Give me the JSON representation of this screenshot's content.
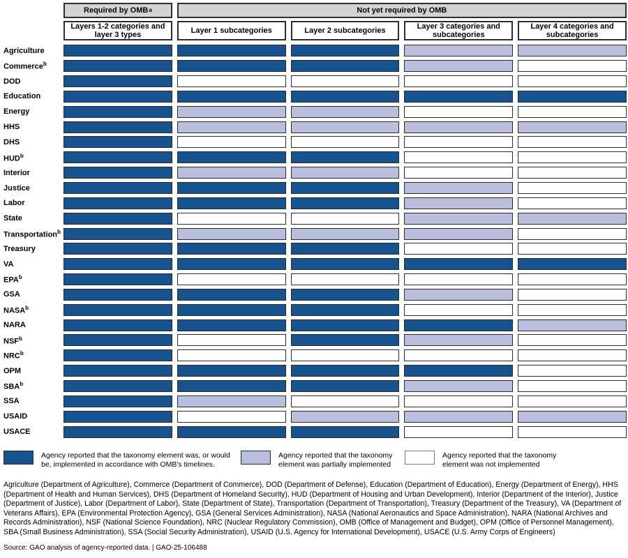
{
  "colors": {
    "implemented": "#16538F",
    "partial": "#B9BEDD",
    "not_implemented": "#FFFFFF",
    "header_fill": "#D3D3D3"
  },
  "header": {
    "required_label": "Required by OMB",
    "required_sup": "a",
    "not_required_label": "Not yet required by OMB"
  },
  "chart_data": {
    "type": "heatmap",
    "title": "",
    "column_groups": [
      {
        "label": "Required by OMB",
        "sup": "a",
        "span": 1
      },
      {
        "label": "Not yet required by OMB",
        "sup": "",
        "span": 4
      }
    ],
    "columns": [
      "Layers 1-2 categories and layer 3 types",
      "Layer 1 subcategories",
      "Layer 2 subcategories",
      "Layer 3 categories and subcategories",
      "Layer 4 categories and subcategories"
    ],
    "status_values": [
      "implemented",
      "partial",
      "not_implemented"
    ],
    "rows": [
      {
        "agency": "Agriculture",
        "sup": "",
        "values": [
          "implemented",
          "implemented",
          "implemented",
          "partial",
          "partial"
        ]
      },
      {
        "agency": "Commerce",
        "sup": "b",
        "values": [
          "implemented",
          "implemented",
          "implemented",
          "partial",
          "not_implemented"
        ]
      },
      {
        "agency": "DOD",
        "sup": "",
        "values": [
          "implemented",
          "not_implemented",
          "not_implemented",
          "not_implemented",
          "not_implemented"
        ]
      },
      {
        "agency": "Education",
        "sup": "",
        "values": [
          "implemented",
          "implemented",
          "implemented",
          "implemented",
          "implemented"
        ]
      },
      {
        "agency": "Energy",
        "sup": "",
        "values": [
          "implemented",
          "partial",
          "partial",
          "not_implemented",
          "not_implemented"
        ]
      },
      {
        "agency": "HHS",
        "sup": "",
        "values": [
          "implemented",
          "partial",
          "partial",
          "partial",
          "partial"
        ]
      },
      {
        "agency": "DHS",
        "sup": "",
        "values": [
          "implemented",
          "not_implemented",
          "not_implemented",
          "not_implemented",
          "not_implemented"
        ]
      },
      {
        "agency": "HUD",
        "sup": "b",
        "values": [
          "implemented",
          "implemented",
          "implemented",
          "not_implemented",
          "not_implemented"
        ]
      },
      {
        "agency": "Interior",
        "sup": "",
        "values": [
          "implemented",
          "partial",
          "partial",
          "not_implemented",
          "not_implemented"
        ]
      },
      {
        "agency": "Justice",
        "sup": "",
        "values": [
          "implemented",
          "implemented",
          "implemented",
          "partial",
          "not_implemented"
        ]
      },
      {
        "agency": "Labor",
        "sup": "",
        "values": [
          "implemented",
          "implemented",
          "implemented",
          "partial",
          "not_implemented"
        ]
      },
      {
        "agency": "State",
        "sup": "",
        "values": [
          "implemented",
          "not_implemented",
          "not_implemented",
          "partial",
          "partial"
        ]
      },
      {
        "agency": "Transportation",
        "sup": "b",
        "values": [
          "implemented",
          "partial",
          "partial",
          "partial",
          "not_implemented"
        ]
      },
      {
        "agency": "Treasury",
        "sup": "",
        "values": [
          "implemented",
          "implemented",
          "implemented",
          "not_implemented",
          "not_implemented"
        ]
      },
      {
        "agency": "VA",
        "sup": "",
        "values": [
          "implemented",
          "implemented",
          "implemented",
          "implemented",
          "implemented"
        ]
      },
      {
        "agency": "EPA",
        "sup": "b",
        "values": [
          "implemented",
          "not_implemented",
          "not_implemented",
          "not_implemented",
          "not_implemented"
        ]
      },
      {
        "agency": "GSA",
        "sup": "",
        "values": [
          "implemented",
          "implemented",
          "implemented",
          "partial",
          "not_implemented"
        ]
      },
      {
        "agency": "NASA",
        "sup": "b",
        "values": [
          "implemented",
          "implemented",
          "implemented",
          "not_implemented",
          "not_implemented"
        ]
      },
      {
        "agency": "NARA",
        "sup": "",
        "values": [
          "implemented",
          "implemented",
          "implemented",
          "implemented",
          "partial"
        ]
      },
      {
        "agency": "NSF",
        "sup": "b",
        "values": [
          "implemented",
          "not_implemented",
          "implemented",
          "partial",
          "not_implemented"
        ]
      },
      {
        "agency": "NRC",
        "sup": "b",
        "values": [
          "implemented",
          "not_implemented",
          "not_implemented",
          "not_implemented",
          "not_implemented"
        ]
      },
      {
        "agency": "OPM",
        "sup": "",
        "values": [
          "implemented",
          "implemented",
          "implemented",
          "implemented",
          "not_implemented"
        ]
      },
      {
        "agency": "SBA",
        "sup": "b",
        "values": [
          "implemented",
          "implemented",
          "implemented",
          "partial",
          "not_implemented"
        ]
      },
      {
        "agency": "SSA",
        "sup": "",
        "values": [
          "implemented",
          "partial",
          "not_implemented",
          "not_implemented",
          "not_implemented"
        ]
      },
      {
        "agency": "USAID",
        "sup": "",
        "values": [
          "implemented",
          "not_implemented",
          "partial",
          "partial",
          "partial"
        ]
      },
      {
        "agency": "USACE",
        "sup": "",
        "values": [
          "implemented",
          "implemented",
          "implemented",
          "not_implemented",
          "not_implemented"
        ]
      }
    ]
  },
  "legend": [
    {
      "key": "implemented",
      "text": "Agency reported that the taxonomy element was, or would be, implemented in accordance with OMB's timelines."
    },
    {
      "key": "partial",
      "text": "Agency reported that the taxonomy element was partially implemented"
    },
    {
      "key": "not_implemented",
      "text": "Agency reported that the taxonomy element was not implemented"
    }
  ],
  "footnote": "Agriculture (Department of Agriculture), Commerce (Department of Commerce), DOD (Department of Defense), Education (Department of Education), Energy (Department of Energy), HHS (Department of Health and Human Services), DHS (Department of Homeland Security), HUD (Department of Housing and Urban Development), Interior (Department of the Interior), Justice (Department of Justice), Labor (Department of Labor), State (Department of State), Transportation (Department of Transportation), Treasury (Department of the Treasury), VA (Department of Veterans Affairs), EPA (Environmental Protection Agency), GSA (General Services Administration), NASA (National Aeronautics and Space Administration), NARA (National Archives and Records Administration), NSF (National Science Foundation), NRC (Nuclear Regulatory Commission), OMB (Office of Management and Budget), OPM (Office of Personnel Management), SBA (Small Business Administration), SSA (Social Security Administration), USAID (U.S. Agency for International Development), USACE (U.S. Army Corps of Engineers)",
  "source": "Source: GAO analysis of agency-reported data.  |  GAO-25-106488"
}
